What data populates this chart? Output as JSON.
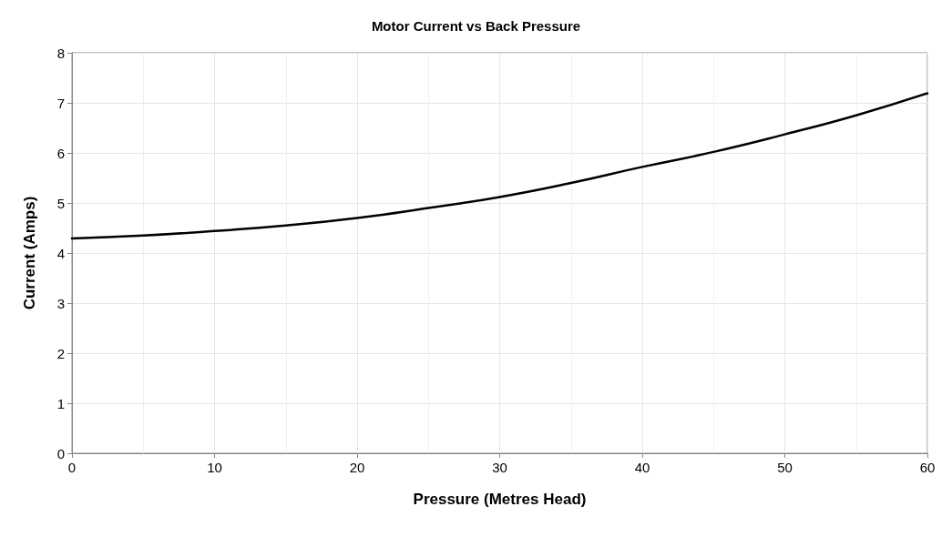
{
  "chart_data": {
    "type": "line",
    "title": "Motor Current vs Back Pressure",
    "xlabel": "Pressure (Metres Head)",
    "ylabel": "Current (Amps)",
    "x": [
      0,
      5,
      10,
      15,
      20,
      25,
      30,
      35,
      40,
      45,
      50,
      55,
      60
    ],
    "series": [
      {
        "color": "#000000",
        "values": [
          4.29,
          4.35,
          4.44,
          4.55,
          4.7,
          4.9,
          5.12,
          5.4,
          5.72,
          6.02,
          6.37,
          6.75,
          7.19
        ]
      }
    ],
    "xlim": [
      0,
      60
    ],
    "xticks": [
      0,
      10,
      20,
      30,
      40,
      50,
      60
    ],
    "ylim": [
      0,
      8
    ],
    "yticks": [
      0,
      1,
      2,
      3,
      4,
      5,
      6,
      7,
      8
    ],
    "grid": true,
    "marker": "none",
    "line_style": "solid"
  }
}
